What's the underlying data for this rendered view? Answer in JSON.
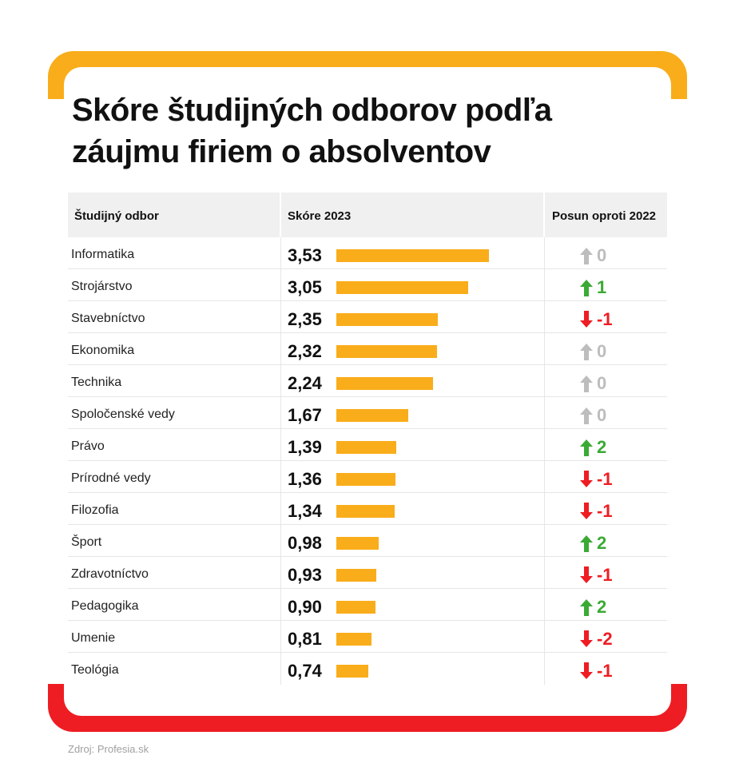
{
  "title": "Skóre študijných odborov podľa záujmu firiem o absolventov",
  "source": "Zdroj: Profesia.sk",
  "colors": {
    "bar": "#f9ad1a",
    "frame_top": "#f9ad1a",
    "frame_bottom": "#ee1d23",
    "up": "#3aaa35",
    "down": "#ee1d23",
    "neutral": "#bdbdbd"
  },
  "chart_data": {
    "type": "bar",
    "title": "Skóre študijných odborov podľa záujmu firiem o absolventov",
    "columns": [
      "Študijný odbor",
      "Skóre 2023",
      "Posun oproti 2022"
    ],
    "categories": [
      "Informatika",
      "Strojárstvo",
      "Stavebníctvo",
      "Ekonomika",
      "Technika",
      "Spoločenské vedy",
      "Právo",
      "Prírodné vedy",
      "Filozofia",
      "Šport",
      "Zdravotníctvo",
      "Pedagogika",
      "Umenie",
      "Teológia"
    ],
    "values": [
      3.53,
      3.05,
      2.35,
      2.32,
      2.24,
      1.67,
      1.39,
      1.36,
      1.34,
      0.98,
      0.93,
      0.9,
      0.81,
      0.74
    ],
    "value_labels": [
      "3,53",
      "3,05",
      "2,35",
      "2,32",
      "2,24",
      "1,67",
      "1,39",
      "1,36",
      "1,34",
      "0,98",
      "0,93",
      "0,90",
      "0,81",
      "0,74"
    ],
    "shift": [
      0,
      1,
      -1,
      0,
      0,
      0,
      2,
      -1,
      -1,
      2,
      -1,
      2,
      -2,
      -1
    ],
    "shift_labels": [
      "0",
      "1",
      "-1",
      "0",
      "0",
      "0",
      "2",
      "-1",
      "-1",
      "2",
      "-1",
      "2",
      "-2",
      "-1"
    ],
    "xlim": [
      0,
      3.53
    ],
    "grid": false,
    "legend": "none"
  }
}
